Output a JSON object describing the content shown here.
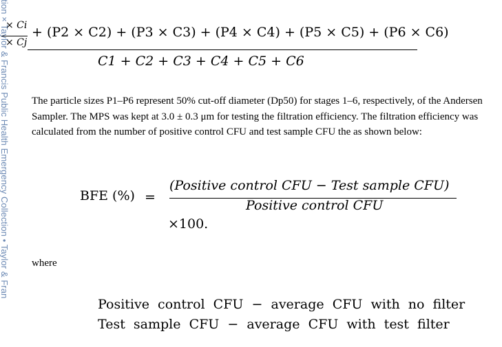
{
  "sidebar": {
    "watermark": "ollection × Taylor & Francis Public Health Emergency Collection  •  Taylor & Fran"
  },
  "top_equation": {
    "frac_numerator": "× Ci",
    "frac_denominator": "× Cj",
    "numerator_rest": "+ (P2 × C2) + (P3 × C3) + (P4 × C4) + (P5 × C5) + (P6 × C6)",
    "denominator": "C1 + C2 + C3 + C4 + C5 + C6"
  },
  "paragraph": "The particle sizes P1–P6 represent 50% cut-off diameter (Dp50) for stages 1–6, respectively, of the Andersen Sampler. The MPS was kept at 3.0 ± 0.3 μm for testing the filtration efficiency. The filtration efficiency was calculated from the number of positive control CFU and test sample CFU the as shown below:",
  "bfe_equation": {
    "lhs": "BFE (%)",
    "equals": "=",
    "numerator": "(Positive control CFU  −  Test sample CFU)",
    "denominator": "Positive control CFU",
    "multiplier": "×100."
  },
  "where_label": "where",
  "definitions": [
    "Positive  control  CFU  −  average  CFU  with  no  filter",
    "Test  sample  CFU  −  average  CFU  with  test  filter"
  ]
}
